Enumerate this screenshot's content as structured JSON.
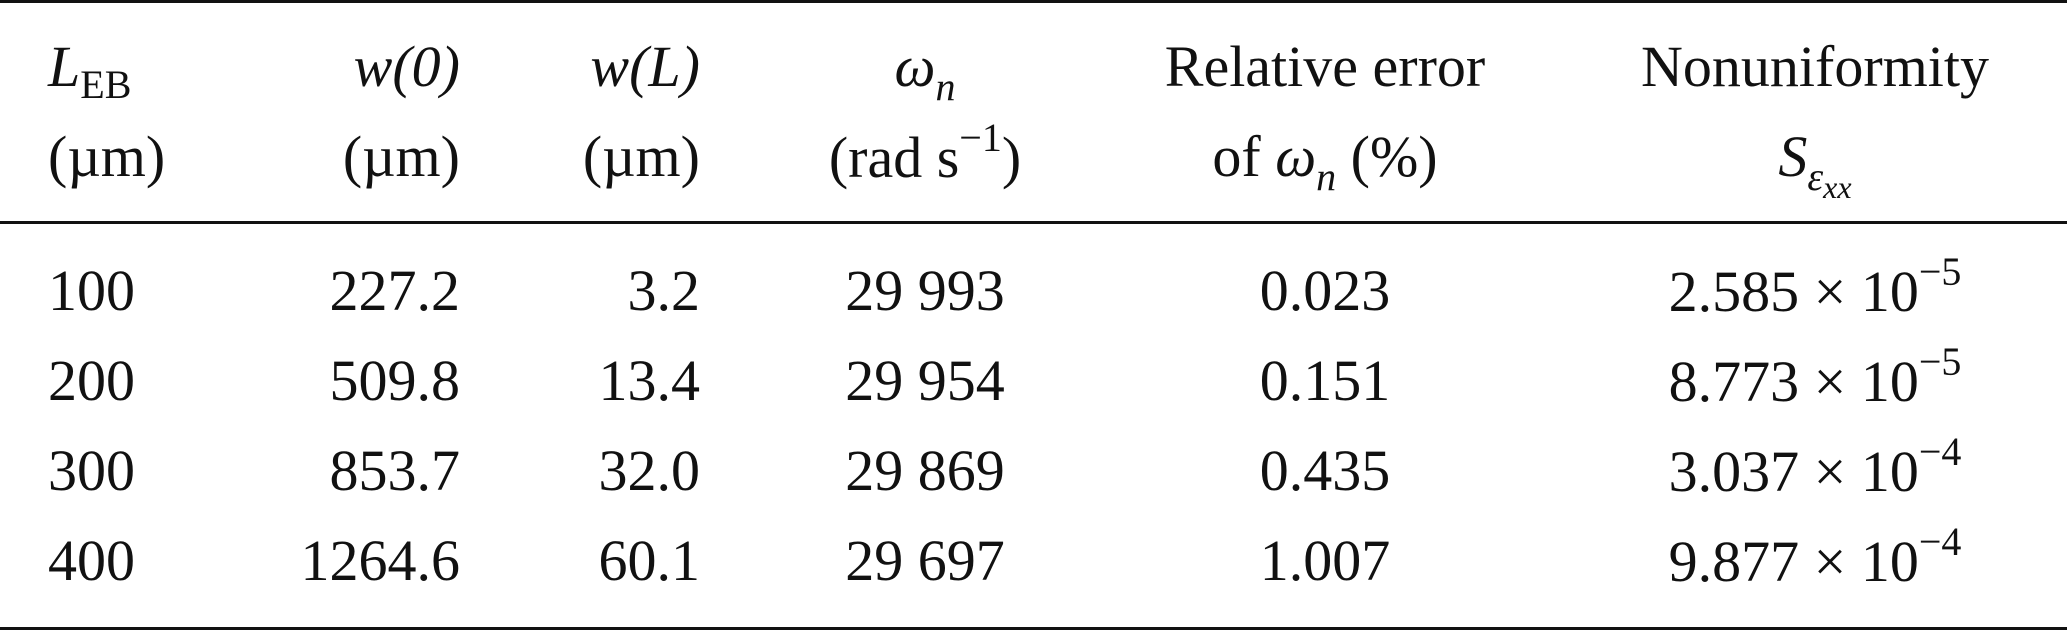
{
  "table": {
    "header": {
      "col1": {
        "symbol": "L",
        "sub": "EB",
        "unit": "(µm)"
      },
      "col2": {
        "line1": "w(0)",
        "unit": "(µm)"
      },
      "col3": {
        "line1": "w(L)",
        "unit": "(µm)"
      },
      "col4": {
        "symbol": "ω",
        "sub": "n",
        "unit_a": "(rad s",
        "unit_exp": "−1",
        "unit_b": ")"
      },
      "col5": {
        "line1": "Relative error",
        "line2_a": "of ",
        "line2_sym": "ω",
        "line2_sub": "n",
        "line2_b": " (%)"
      },
      "col6": {
        "line1": "Nonuniformity",
        "sym": "S",
        "sub": "ε",
        "subsub": "xx"
      }
    },
    "rows": [
      {
        "L": "100",
        "w0": "227.2",
        "wL": "3.2",
        "omega": "29 993",
        "err": "0.023",
        "S_mant": "2.585 × 10",
        "S_exp": "−5"
      },
      {
        "L": "200",
        "w0": "509.8",
        "wL": "13.4",
        "omega": "29 954",
        "err": "0.151",
        "S_mant": "8.773 × 10",
        "S_exp": "−5"
      },
      {
        "L": "300",
        "w0": "853.7",
        "wL": "32.0",
        "omega": "29 869",
        "err": "0.435",
        "S_mant": "3.037 × 10",
        "S_exp": "−4"
      },
      {
        "L": "400",
        "w0": "1264.6",
        "wL": "60.1",
        "omega": "29 697",
        "err": "1.007",
        "S_mant": "9.877 × 10",
        "S_exp": "−4"
      }
    ]
  }
}
